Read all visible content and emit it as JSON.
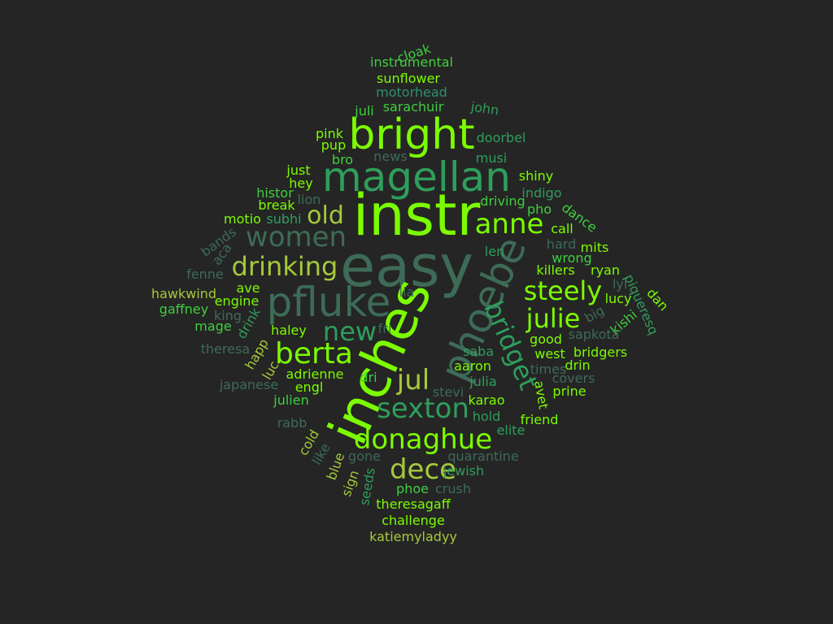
{
  "palette": {
    "background": "#252525",
    "lime": "#7cfc00",
    "light_green": "#9be828",
    "yellow_green": "#a6c93a",
    "green": "#3fcf3f",
    "jade": "#2e9e5b",
    "teal": "#2f8f6f",
    "grey_green": "#3d6b57"
  },
  "words": [
    {
      "text": "easy",
      "color": "#3d6b57"
    },
    {
      "text": "instr",
      "color": "#7cfc00"
    },
    {
      "text": "inches",
      "color": "#7cfc00"
    },
    {
      "text": "magellan",
      "color": "#2e9e5b"
    },
    {
      "text": "bright",
      "color": "#7cfc00"
    },
    {
      "text": "pfluke",
      "color": "#3d6b57"
    },
    {
      "text": "phoebe",
      "color": "#3d6b57"
    },
    {
      "text": "bridget",
      "color": "#2e9e5b"
    },
    {
      "text": "anne",
      "color": "#7cfc00"
    },
    {
      "text": "women",
      "color": "#3d6b57"
    },
    {
      "text": "drinking",
      "color": "#a6c93a"
    },
    {
      "text": "steely",
      "color": "#7cfc00"
    },
    {
      "text": "julie",
      "color": "#7cfc00"
    },
    {
      "text": "berta",
      "color": "#7cfc00"
    },
    {
      "text": "new",
      "color": "#2e9e5b"
    },
    {
      "text": "old",
      "color": "#a6c93a"
    },
    {
      "text": "jul",
      "color": "#a6c93a"
    },
    {
      "text": "sexton",
      "color": "#2e9e5b"
    },
    {
      "text": "donaghue",
      "color": "#7cfc00"
    },
    {
      "text": "dece",
      "color": "#a6c93a"
    },
    {
      "text": "cloak",
      "color": "#3fcf3f"
    },
    {
      "text": "instrumental",
      "color": "#3fcf3f"
    },
    {
      "text": "sunflower",
      "color": "#7cfc00"
    },
    {
      "text": "motorhead",
      "color": "#2f8f6f"
    },
    {
      "text": "juli",
      "color": "#3fcf3f"
    },
    {
      "text": "sarachuir",
      "color": "#3fcf3f"
    },
    {
      "text": "john",
      "color": "#2e9e5b"
    },
    {
      "text": "pink",
      "color": "#7cfc00"
    },
    {
      "text": "pup",
      "color": "#7cfc00"
    },
    {
      "text": "doorbel",
      "color": "#2e9e5b"
    },
    {
      "text": "news",
      "color": "#3d6b57"
    },
    {
      "text": "bro",
      "color": "#3fcf3f"
    },
    {
      "text": "musi",
      "color": "#2e9e5b"
    },
    {
      "text": "just",
      "color": "#7cfc00"
    },
    {
      "text": "shiny",
      "color": "#7cfc00"
    },
    {
      "text": "hey",
      "color": "#7cfc00"
    },
    {
      "text": "histor",
      "color": "#3fcf3f"
    },
    {
      "text": "lion",
      "color": "#3d6b57"
    },
    {
      "text": "indigo",
      "color": "#2e9e5b"
    },
    {
      "text": "driving",
      "color": "#3fcf3f"
    },
    {
      "text": "break",
      "color": "#7cfc00"
    },
    {
      "text": "pho",
      "color": "#3fcf3f"
    },
    {
      "text": "dance",
      "color": "#3fcf3f"
    },
    {
      "text": "motio",
      "color": "#7cfc00"
    },
    {
      "text": "subhi",
      "color": "#2e9e5b"
    },
    {
      "text": "call",
      "color": "#7cfc00"
    },
    {
      "text": "bands",
      "color": "#3d6b57"
    },
    {
      "text": "aca",
      "color": "#3d6b57"
    },
    {
      "text": "hard",
      "color": "#3d6b57"
    },
    {
      "text": "mits",
      "color": "#7cfc00"
    },
    {
      "text": "len",
      "color": "#2e9e5b"
    },
    {
      "text": "wrong",
      "color": "#3fcf3f"
    },
    {
      "text": "fenne",
      "color": "#3d6b57"
    },
    {
      "text": "killers",
      "color": "#7cfc00"
    },
    {
      "text": "ryan",
      "color": "#7cfc00"
    },
    {
      "text": "piqueresq",
      "color": "#2e9e5b"
    },
    {
      "text": "hawkwind",
      "color": "#a6c93a"
    },
    {
      "text": "ave",
      "color": "#7cfc00"
    },
    {
      "text": "lia",
      "color": "#3d6b57"
    },
    {
      "text": "lyl",
      "color": "#3d6b57"
    },
    {
      "text": "lucy",
      "color": "#7cfc00"
    },
    {
      "text": "dan",
      "color": "#7cfc00"
    },
    {
      "text": "gaffney",
      "color": "#3fcf3f"
    },
    {
      "text": "engine",
      "color": "#7cfc00"
    },
    {
      "text": "king",
      "color": "#3d6b57"
    },
    {
      "text": "drink",
      "color": "#2e9e5b"
    },
    {
      "text": "big",
      "color": "#3d6b57"
    },
    {
      "text": "kishi",
      "color": "#3fcf3f"
    },
    {
      "text": "mage",
      "color": "#3fcf3f"
    },
    {
      "text": "haley",
      "color": "#7cfc00"
    },
    {
      "text": "fri",
      "color": "#3d6b57"
    },
    {
      "text": "good",
      "color": "#7cfc00"
    },
    {
      "text": "sapkota",
      "color": "#3d6b57"
    },
    {
      "text": "theresa",
      "color": "#3d6b57"
    },
    {
      "text": "happ",
      "color": "#a6c93a"
    },
    {
      "text": "saba",
      "color": "#2e9e5b"
    },
    {
      "text": "west",
      "color": "#7cfc00"
    },
    {
      "text": "bridgers",
      "color": "#7cfc00"
    },
    {
      "text": "aaron",
      "color": "#7cfc00"
    },
    {
      "text": "drin",
      "color": "#7cfc00"
    },
    {
      "text": "adrienne",
      "color": "#7cfc00"
    },
    {
      "text": "luc",
      "color": "#a6c93a"
    },
    {
      "text": "times",
      "color": "#3d6b57"
    },
    {
      "text": "dri",
      "color": "#3fcf3f"
    },
    {
      "text": "julia",
      "color": "#2e9e5b"
    },
    {
      "text": "covers",
      "color": "#3d6b57"
    },
    {
      "text": "japanese",
      "color": "#3d6b57"
    },
    {
      "text": "engl",
      "color": "#7cfc00"
    },
    {
      "text": "avet",
      "color": "#7cfc00"
    },
    {
      "text": "prine",
      "color": "#7cfc00"
    },
    {
      "text": "stevi",
      "color": "#3d6b57"
    },
    {
      "text": "julien",
      "color": "#3fcf3f"
    },
    {
      "text": "karao",
      "color": "#7cfc00"
    },
    {
      "text": "rabb",
      "color": "#3d6b57"
    },
    {
      "text": "hold",
      "color": "#2e9e5b"
    },
    {
      "text": "friend",
      "color": "#7cfc00"
    },
    {
      "text": "elite",
      "color": "#2e9e5b"
    },
    {
      "text": "cold",
      "color": "#a6c93a"
    },
    {
      "text": "like",
      "color": "#3d6b57"
    },
    {
      "text": "gone",
      "color": "#3d6b57"
    },
    {
      "text": "quarantine",
      "color": "#3d6b57"
    },
    {
      "text": "blue",
      "color": "#a6c93a"
    },
    {
      "text": "jewish",
      "color": "#2e9e5b"
    },
    {
      "text": "sign",
      "color": "#a6c93a"
    },
    {
      "text": "seeds",
      "color": "#2e9e5b"
    },
    {
      "text": "phoe",
      "color": "#3fcf3f"
    },
    {
      "text": "crush",
      "color": "#3d6b57"
    },
    {
      "text": "theresagaff",
      "color": "#7cfc00"
    },
    {
      "text": "challenge",
      "color": "#7cfc00"
    },
    {
      "text": "katiemyladyy",
      "color": "#a6c93a"
    }
  ]
}
